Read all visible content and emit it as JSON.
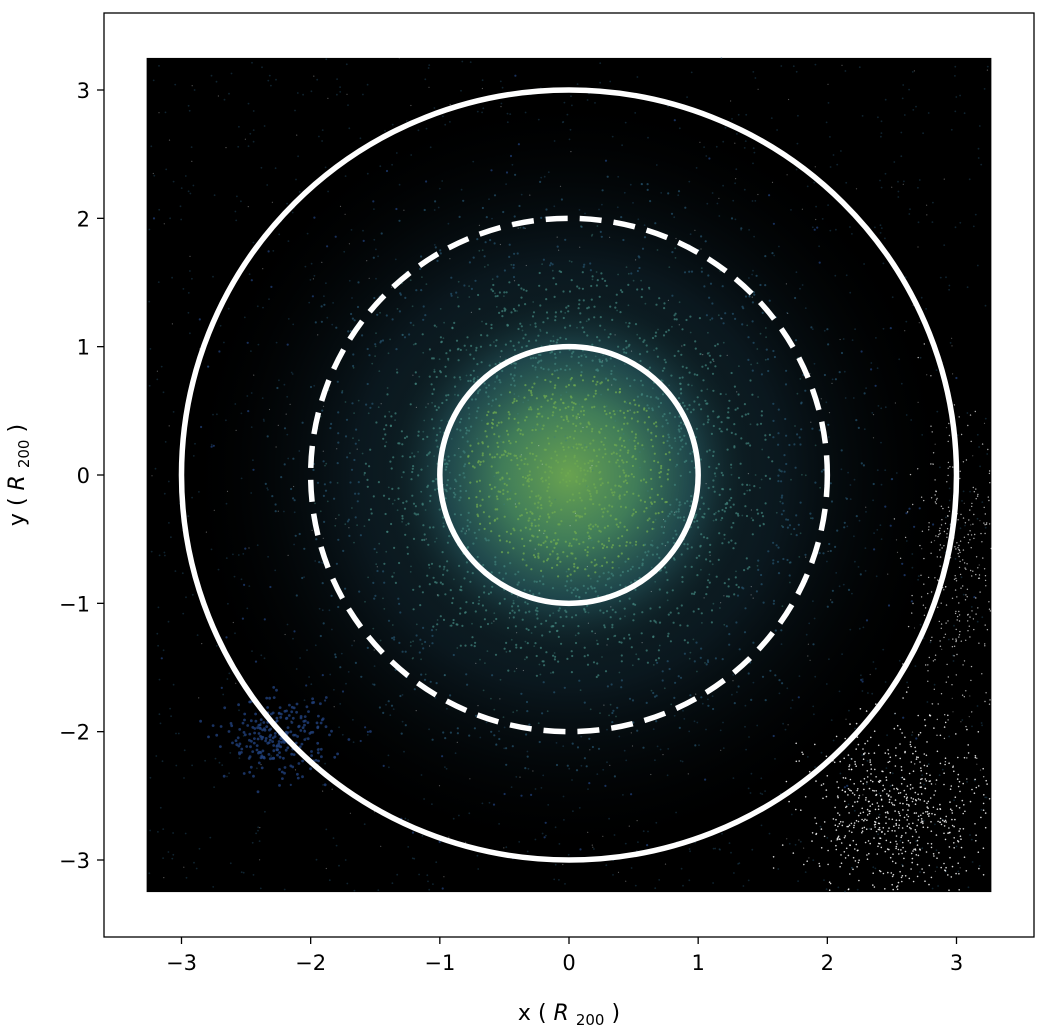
{
  "chart_data": {
    "type": "scatter",
    "title": "",
    "xlabel": "x",
    "xlabel_unit_base": "R",
    "xlabel_unit_sub": "200",
    "ylabel": "y",
    "ylabel_unit_base": "R",
    "ylabel_unit_sub": "200",
    "xlim": [
      -3.6,
      3.6
    ],
    "ylim": [
      -3.6,
      3.6
    ],
    "xticks": [
      -3,
      -2,
      -1,
      0,
      1,
      2,
      3
    ],
    "yticks": [
      -3,
      -2,
      -1,
      0,
      1,
      2,
      3
    ],
    "xtick_labels": [
      "−3",
      "−2",
      "−1",
      "0",
      "1",
      "2",
      "3"
    ],
    "ytick_labels": [
      "−3",
      "−2",
      "−1",
      "0",
      "1",
      "2",
      "3"
    ],
    "grid": false,
    "legend": "none",
    "scatter_region": {
      "x": [
        -3.27,
        3.27
      ],
      "y": [
        -3.25,
        3.25
      ]
    },
    "circles": [
      {
        "center": [
          0,
          0
        ],
        "radius": 1,
        "style": "solid",
        "color": "#ffffff"
      },
      {
        "center": [
          0,
          0
        ],
        "radius": 2,
        "style": "dashed",
        "color": "#ffffff"
      },
      {
        "center": [
          0,
          0
        ],
        "radius": 3,
        "style": "solid",
        "color": "#ffffff"
      }
    ],
    "colors": {
      "background": "#000000",
      "core": "#6ea850",
      "mid": "#3f7f78",
      "outer": "#24506a",
      "dense_blue": "#20407a",
      "white_points": "#ffffff"
    }
  }
}
